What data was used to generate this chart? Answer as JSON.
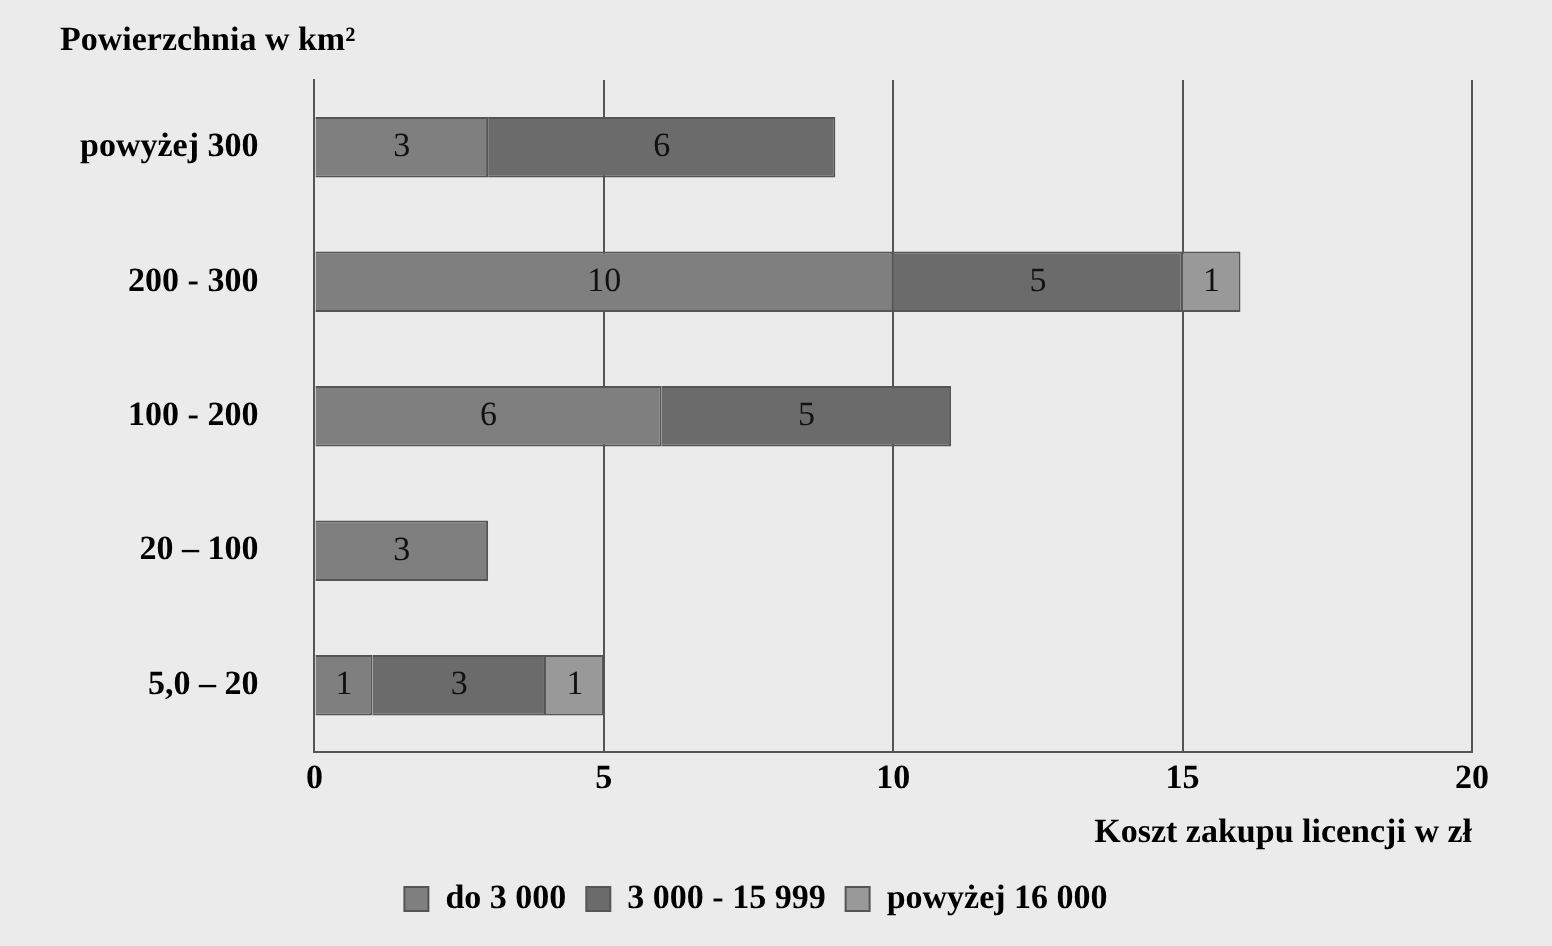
{
  "chart_data": {
    "type": "bar",
    "orientation": "horizontal",
    "stacked": true,
    "ylabel": "Powierzchnia w km²",
    "xlabel": "Koszt zakupu licencji w zł",
    "categories": [
      "powyżej 300",
      "200 - 300",
      "100 - 200",
      "20 – 100",
      "5,0 – 20"
    ],
    "series": [
      {
        "name": "do 3 000",
        "color": "#7f7f7f",
        "values": [
          3,
          10,
          6,
          3,
          1
        ]
      },
      {
        "name": "3 000 - 15 999",
        "color": "#6b6b6b",
        "values": [
          6,
          5,
          5,
          null,
          3
        ]
      },
      {
        "name": "powyżej 16 000",
        "color": "#999999",
        "values": [
          null,
          1,
          null,
          null,
          1
        ]
      }
    ],
    "xlim": [
      0,
      20
    ],
    "xticks": [
      0,
      5,
      10,
      15,
      20
    ],
    "grid": "x",
    "legend": "bottom",
    "data_labels": true
  }
}
